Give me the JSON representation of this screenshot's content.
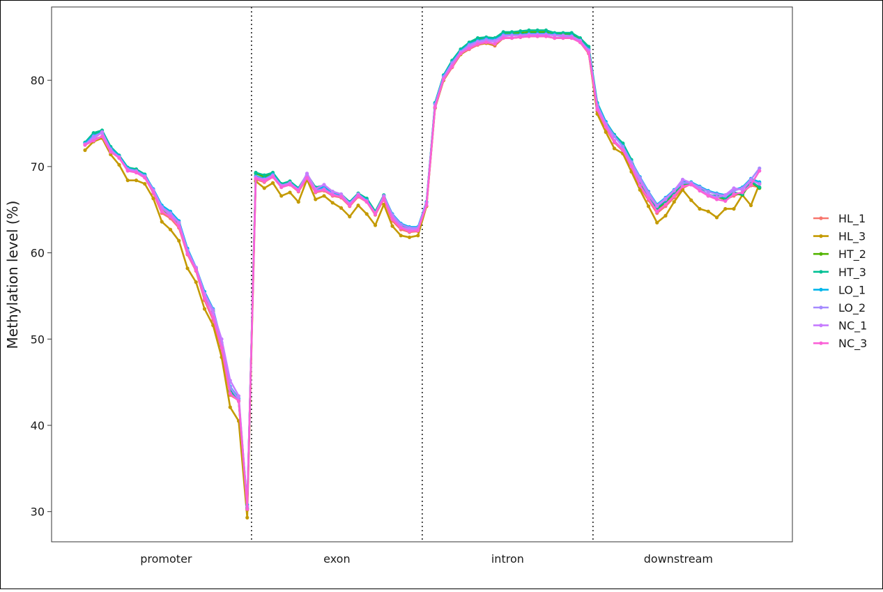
{
  "chart_data": {
    "type": "line",
    "title": "",
    "xlabel": "",
    "ylabel": "Methylation level (%)",
    "ylim": [
      26.5,
      88.5
    ],
    "yticks": [
      30,
      40,
      50,
      60,
      70,
      80
    ],
    "regions": [
      "promoter",
      "exon",
      "intron",
      "downstream"
    ],
    "points_per_region": 20,
    "grid": false,
    "legend_position": "right",
    "series": [
      {
        "name": "HL_1",
        "color": "#F8766D",
        "values": [
          72.6,
          73.1,
          73.5,
          71.8,
          71.0,
          69.6,
          69.4,
          68.8,
          66.9,
          64.6,
          64.0,
          62.9,
          59.8,
          57.9,
          54.5,
          52.2,
          48.8,
          43.5,
          42.9,
          30.2,
          68.5,
          68.2,
          68.8,
          67.6,
          67.9,
          67.1,
          68.6,
          67.0,
          67.2,
          66.6,
          66.4,
          65.4,
          66.5,
          65.9,
          64.4,
          66.2,
          63.7,
          62.7,
          62.4,
          62.5,
          65.4,
          76.8,
          80.0,
          81.5,
          83.0,
          83.6,
          84.1,
          84.3,
          84.0,
          84.9,
          84.9,
          85.0,
          85.1,
          85.1,
          85.1,
          84.9,
          84.9,
          84.9,
          84.4,
          83.1,
          76.4,
          74.4,
          72.8,
          71.8,
          69.8,
          67.6,
          66.1,
          64.6,
          65.4,
          66.4,
          67.5,
          68.0,
          67.3,
          66.8,
          66.5,
          66.2,
          66.6,
          67.0,
          67.8,
          67.6
        ]
      },
      {
        "name": "HL_3",
        "color": "#C49A00",
        "values": [
          71.9,
          72.9,
          73.3,
          71.4,
          70.2,
          68.4,
          68.4,
          68.0,
          66.3,
          63.6,
          62.7,
          61.4,
          58.2,
          56.6,
          53.5,
          51.6,
          47.9,
          42.1,
          40.5,
          29.3,
          68.3,
          67.5,
          68.1,
          66.6,
          67.0,
          65.9,
          68.5,
          66.2,
          66.6,
          65.8,
          65.2,
          64.2,
          65.5,
          64.5,
          63.2,
          65.6,
          63.1,
          62.0,
          61.8,
          62.0,
          65.4,
          76.8,
          80.0,
          81.6,
          83.0,
          83.7,
          84.2,
          84.3,
          84.1,
          84.9,
          84.9,
          85.0,
          85.1,
          85.1,
          85.1,
          84.9,
          84.9,
          84.9,
          84.5,
          83.2,
          76.1,
          74.0,
          72.1,
          71.5,
          69.4,
          67.3,
          65.4,
          63.5,
          64.3,
          65.9,
          67.3,
          66.1,
          65.1,
          64.8,
          64.1,
          65.1,
          65.1,
          66.7,
          65.5,
          68.0
        ]
      },
      {
        "name": "HT_2",
        "color": "#53B400",
        "values": [
          72.7,
          73.8,
          74.1,
          72.2,
          71.2,
          69.8,
          69.6,
          69.0,
          67.2,
          65.2,
          64.2,
          63.4,
          60.2,
          58.1,
          55.0,
          53.2,
          49.2,
          44.0,
          42.8,
          30.3,
          69.2,
          68.8,
          69.2,
          67.9,
          68.2,
          67.4,
          69.0,
          67.5,
          67.6,
          67.0,
          66.6,
          65.8,
          66.8,
          66.2,
          64.6,
          66.6,
          64.2,
          63.1,
          62.7,
          62.8,
          65.8,
          77.3,
          80.5,
          82.2,
          83.5,
          84.3,
          84.8,
          84.9,
          84.8,
          85.5,
          85.5,
          85.5,
          85.6,
          85.6,
          85.6,
          85.4,
          85.4,
          85.4,
          84.8,
          83.7,
          77.2,
          75.0,
          73.6,
          72.6,
          70.6,
          68.1,
          66.4,
          65.1,
          65.8,
          66.8,
          67.9,
          68.0,
          67.4,
          66.6,
          66.5,
          66.2,
          66.9,
          66.7,
          68.2,
          67.5
        ]
      },
      {
        "name": "HT_3",
        "color": "#00C094",
        "values": [
          72.8,
          73.9,
          74.2,
          72.3,
          71.3,
          69.9,
          69.7,
          69.1,
          67.3,
          65.3,
          64.3,
          63.5,
          60.3,
          58.2,
          55.1,
          53.3,
          49.3,
          44.1,
          42.9,
          30.4,
          69.3,
          69.0,
          69.3,
          68.0,
          68.3,
          67.5,
          69.1,
          67.6,
          67.8,
          67.1,
          66.8,
          65.9,
          66.9,
          66.3,
          64.8,
          66.7,
          64.3,
          63.2,
          62.8,
          62.9,
          65.9,
          77.4,
          80.6,
          82.3,
          83.6,
          84.4,
          84.9,
          85.0,
          84.9,
          85.6,
          85.6,
          85.7,
          85.8,
          85.8,
          85.8,
          85.5,
          85.5,
          85.5,
          84.9,
          83.9,
          77.4,
          75.2,
          73.7,
          72.7,
          70.8,
          68.3,
          66.6,
          65.2,
          66.0,
          67.0,
          68.0,
          68.1,
          67.5,
          66.7,
          66.6,
          66.3,
          67.0,
          66.8,
          68.3,
          67.6
        ]
      },
      {
        "name": "LO_1",
        "color": "#00B6EB",
        "values": [
          72.7,
          73.6,
          74.0,
          72.1,
          71.2,
          69.8,
          69.5,
          69.0,
          67.4,
          65.5,
          64.8,
          63.7,
          60.5,
          58.3,
          55.5,
          53.5,
          49.6,
          44.5,
          43.1,
          30.8,
          68.9,
          68.6,
          69.1,
          67.8,
          68.1,
          67.4,
          69.0,
          67.3,
          67.6,
          66.9,
          66.6,
          65.8,
          66.8,
          66.1,
          64.6,
          66.6,
          64.5,
          63.4,
          63.0,
          63.0,
          65.9,
          77.3,
          80.5,
          82.1,
          83.4,
          84.2,
          84.6,
          84.8,
          84.7,
          85.3,
          85.3,
          85.3,
          85.4,
          85.4,
          85.4,
          85.3,
          85.2,
          85.2,
          84.6,
          83.6,
          77.3,
          75.2,
          73.6,
          72.4,
          70.6,
          68.8,
          67.1,
          65.6,
          66.4,
          67.3,
          68.2,
          68.2,
          67.7,
          67.2,
          66.9,
          66.7,
          67.3,
          67.6,
          68.6,
          68.2
        ]
      },
      {
        "name": "LO_2",
        "color": "#A58AFF",
        "values": [
          72.5,
          73.5,
          73.9,
          72.0,
          71.0,
          69.7,
          69.5,
          68.9,
          67.3,
          65.3,
          64.6,
          63.5,
          60.3,
          58.2,
          55.3,
          53.4,
          49.5,
          44.4,
          43.0,
          30.6,
          68.8,
          68.5,
          69.0,
          67.7,
          68.0,
          67.2,
          68.9,
          67.2,
          67.4,
          66.8,
          66.5,
          65.7,
          66.7,
          66.0,
          64.5,
          66.5,
          64.4,
          63.3,
          62.9,
          62.9,
          65.8,
          77.2,
          80.4,
          82.0,
          83.3,
          84.1,
          84.5,
          84.7,
          84.6,
          85.2,
          85.2,
          85.2,
          85.3,
          85.3,
          85.3,
          85.2,
          85.1,
          85.1,
          84.5,
          83.5,
          77.1,
          75.0,
          73.5,
          72.3,
          70.5,
          68.7,
          67.0,
          65.5,
          66.3,
          67.2,
          68.1,
          68.1,
          67.6,
          67.1,
          66.8,
          66.6,
          67.2,
          67.5,
          68.5,
          69.8
        ]
      },
      {
        "name": "NC_1",
        "color": "#C77CFF",
        "values": [
          72.6,
          73.2,
          74.0,
          71.9,
          71.1,
          69.6,
          69.4,
          68.8,
          67.2,
          65.2,
          64.4,
          63.5,
          60.1,
          58.3,
          55.2,
          53.1,
          50.0,
          45.2,
          43.4,
          30.6,
          68.7,
          68.5,
          68.9,
          67.8,
          68.1,
          67.3,
          69.2,
          67.4,
          67.9,
          67.1,
          66.8,
          65.7,
          66.8,
          66.0,
          64.6,
          66.6,
          64.2,
          63.0,
          62.7,
          62.7,
          65.8,
          76.9,
          80.2,
          81.8,
          83.2,
          83.9,
          84.4,
          84.5,
          84.5,
          85.1,
          85.2,
          85.2,
          85.3,
          85.3,
          85.3,
          85.2,
          85.2,
          85.1,
          84.6,
          83.4,
          76.9,
          74.8,
          73.0,
          72.0,
          70.2,
          68.4,
          66.7,
          65.4,
          66.2,
          67.2,
          68.5,
          68.1,
          67.3,
          66.8,
          66.4,
          66.7,
          67.5,
          67.3,
          68.4,
          68.0
        ]
      },
      {
        "name": "NC_3",
        "color": "#FB61D7",
        "values": [
          72.5,
          73.0,
          73.5,
          71.7,
          71.0,
          69.5,
          69.3,
          68.7,
          67.0,
          64.8,
          64.2,
          63.1,
          59.9,
          58.0,
          54.7,
          52.5,
          49.0,
          43.7,
          42.8,
          30.3,
          68.6,
          68.3,
          68.8,
          67.6,
          67.9,
          67.2,
          68.7,
          67.1,
          67.3,
          66.7,
          66.5,
          65.5,
          66.6,
          65.9,
          64.5,
          66.3,
          63.9,
          62.9,
          62.5,
          62.6,
          65.5,
          76.9,
          80.1,
          81.6,
          83.1,
          83.7,
          84.2,
          84.4,
          84.2,
          84.9,
          84.9,
          85.0,
          85.1,
          85.1,
          85.1,
          84.9,
          84.9,
          84.9,
          84.4,
          83.2,
          76.6,
          74.6,
          72.9,
          71.9,
          70.0,
          67.8,
          66.3,
          64.8,
          65.6,
          66.6,
          67.7,
          67.9,
          67.2,
          66.6,
          66.2,
          66.0,
          66.8,
          67.0,
          67.9,
          69.5
        ]
      }
    ]
  }
}
